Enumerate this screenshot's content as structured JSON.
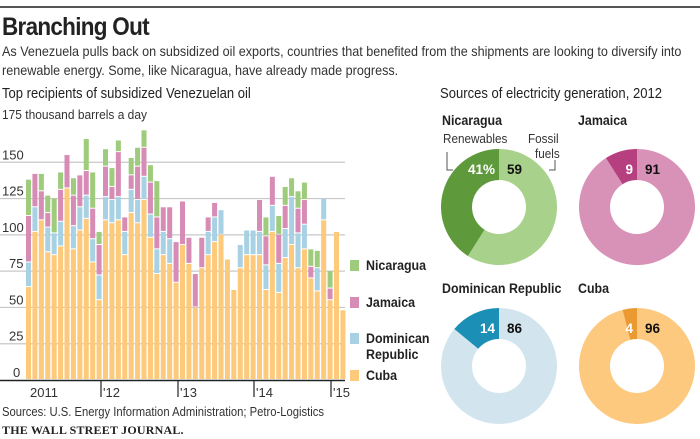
{
  "header": {
    "title": "Branching Out",
    "subtitle": "As Venezuela pulls back on subsidized oil exports, countries that benefited from the shipments are looking to diversify into renewable energy. Some, like Nicaragua, have already made progress."
  },
  "footer": {
    "source": "Sources: U.S. Energy Information Administration; Petro-Logistics",
    "publisher": "THE WALL STREET JOURNAL."
  },
  "colors": {
    "cuba": "#fdc97a",
    "dominican_republic": "#a8d2e4",
    "jamaica": "#d78cb6",
    "nicaragua": "#9fcb7c",
    "nicaragua_dark": "#5e9a3c",
    "nicaragua_light": "#a8d18b",
    "jamaica_dark": "#b63f80",
    "jamaica_light": "#d892b8",
    "dr_dark": "#1b8fb5",
    "dr_light": "#d2e5ef",
    "cuba_dark": "#eb9a32",
    "cuba_light": "#fdc97f"
  },
  "chart_data": [
    {
      "type": "bar",
      "stacked": true,
      "title": "Top recipients of subsidized Venezuelan oil",
      "ylabel": "175 thousand barrels a day",
      "ylim": [
        0,
        175
      ],
      "yticks": [
        0,
        25,
        50,
        75,
        100,
        125,
        150,
        175
      ],
      "ytick_labels": [
        "0",
        "25",
        "50",
        "75",
        "100",
        "125",
        "150",
        "175 thousand barrels a day"
      ],
      "x_tick_labels": [
        "2011",
        "'12",
        "'13",
        "'14",
        "'15"
      ],
      "grid": true,
      "legend": [
        "Nicaragua",
        "Jamaica",
        "Dominican Republic",
        "Cuba"
      ],
      "legend_position": "right",
      "series": [
        {
          "name": "Cuba",
          "values": [
            64,
            102,
            110,
            88,
            86,
            92,
            132,
            90,
            103,
            111,
            81,
            55,
            110,
            108,
            110,
            86,
            115,
            108,
            124,
            98,
            73,
            86,
            80,
            67,
            93,
            80,
            50,
            77,
            86,
            95,
            100,
            83,
            62,
            77,
            86,
            86,
            86,
            62,
            102,
            60,
            84,
            93,
            77,
            90,
            70,
            61,
            110,
            55,
            102,
            48
          ]
        },
        {
          "name": "Dominican Republic",
          "values": [
            17,
            17,
            0,
            17,
            15,
            17,
            0,
            16,
            16,
            16,
            16,
            17,
            16,
            16,
            16,
            16,
            16,
            16,
            16,
            16,
            17,
            16,
            17,
            0,
            0,
            0,
            0,
            0,
            16,
            17,
            17,
            0,
            0,
            16,
            17,
            17,
            16,
            17,
            18,
            20,
            20,
            33,
            24,
            17,
            0,
            16,
            15,
            0,
            0,
            0
          ]
        },
        {
          "name": "Jamaica",
          "values": [
            32,
            23,
            20,
            10,
            0,
            22,
            23,
            21,
            22,
            17,
            21,
            21,
            21,
            9,
            31,
            10,
            10,
            23,
            20,
            22,
            22,
            17,
            22,
            28,
            30,
            18,
            23,
            21,
            10,
            10,
            0,
            0,
            0,
            0,
            0,
            0,
            22,
            20,
            20,
            20,
            16,
            0,
            17,
            17,
            8,
            0,
            0,
            8,
            0,
            0
          ]
        },
        {
          "name": "Nicaragua",
          "values": [
            25,
            0,
            12,
            12,
            24,
            12,
            0,
            12,
            0,
            22,
            25,
            9,
            12,
            13,
            8,
            0,
            12,
            13,
            12,
            12,
            25,
            0,
            0,
            0,
            0,
            0,
            0,
            0,
            0,
            0,
            0,
            0,
            0,
            0,
            0,
            0,
            0,
            13,
            0,
            13,
            13,
            13,
            12,
            12,
            12,
            12,
            0,
            12,
            0,
            0
          ]
        }
      ]
    },
    {
      "type": "pie",
      "title": "Sources of electricity generation, 2012",
      "charts": [
        {
          "country": "Nicaragua",
          "slices": [
            {
              "label": "Renewables",
              "value": 41,
              "display": "41%"
            },
            {
              "label": "Fossil fuels",
              "value": 59,
              "display": "59"
            }
          ]
        },
        {
          "country": "Jamaica",
          "slices": [
            {
              "label": "Renewables",
              "value": 9,
              "display": "9"
            },
            {
              "label": "Fossil fuels",
              "value": 91,
              "display": "91"
            }
          ]
        },
        {
          "country": "Dominican Republic",
          "slices": [
            {
              "label": "Renewables",
              "value": 14,
              "display": "14"
            },
            {
              "label": "Fossil fuels",
              "value": 86,
              "display": "86"
            }
          ]
        },
        {
          "country": "Cuba",
          "slices": [
            {
              "label": "Renewables",
              "value": 4,
              "display": "4"
            },
            {
              "label": "Fossil fuels",
              "value": 96,
              "display": "96"
            }
          ]
        }
      ],
      "annotations": {
        "renewables": "Renewables",
        "fossil_line1": "Fossil",
        "fossil_line2": "fuels"
      }
    }
  ],
  "legend": {
    "items": [
      {
        "label": "Nicaragua"
      },
      {
        "label": "Jamaica"
      },
      {
        "label": "Dominican",
        "label2": "Republic"
      },
      {
        "label": "Cuba"
      }
    ]
  }
}
